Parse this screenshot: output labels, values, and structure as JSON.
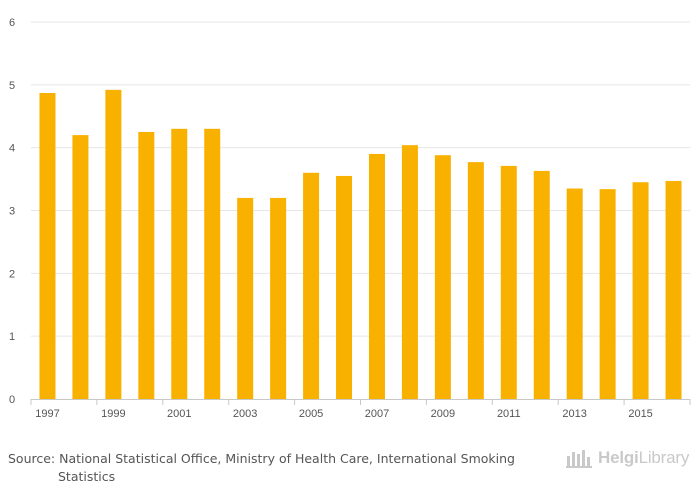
{
  "chart_data": {
    "type": "bar",
    "categories": [
      "1997",
      "1998",
      "1999",
      "2000",
      "2001",
      "2002",
      "2003",
      "2004",
      "2005",
      "2006",
      "2007",
      "2008",
      "2009",
      "2010",
      "2011",
      "2012",
      "2013",
      "2014",
      "2015",
      "2016"
    ],
    "values": [
      4.87,
      4.2,
      4.92,
      4.25,
      4.3,
      4.3,
      3.2,
      3.2,
      3.6,
      3.55,
      3.9,
      4.04,
      3.88,
      3.77,
      3.71,
      3.63,
      3.35,
      3.34,
      3.45,
      3.47
    ],
    "x_tick_labels": [
      "1997",
      "1999",
      "2001",
      "2003",
      "2005",
      "2007",
      "2009",
      "2011",
      "2013",
      "2015"
    ],
    "y_ticks": [
      "0",
      "1",
      "2",
      "3",
      "4",
      "5",
      "6"
    ],
    "ylim": [
      0,
      6
    ],
    "grid": true,
    "bar_color": "#F9B100",
    "title": "",
    "xlabel": "",
    "ylabel": ""
  },
  "source": {
    "prefix": "Source:",
    "line1": "National Statistical Office, Ministry of Health Care, International Smoking",
    "line2": "Statistics"
  },
  "logo": {
    "part1": "Helgi",
    "part2": "Library",
    "icon": "helgi-library-icon"
  }
}
